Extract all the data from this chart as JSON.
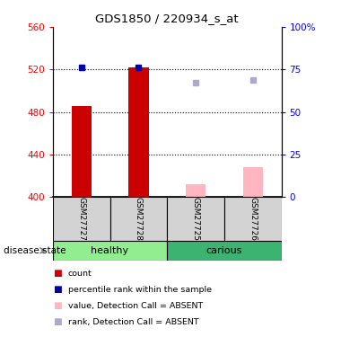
{
  "title": "GDS1850 / 220934_s_at",
  "samples": [
    "GSM27727",
    "GSM27728",
    "GSM27725",
    "GSM27726"
  ],
  "groups": [
    "healthy",
    "healthy",
    "carious",
    "carious"
  ],
  "ylim_left": [
    400,
    560
  ],
  "ylim_right": [
    0,
    100
  ],
  "yticks_left": [
    400,
    440,
    480,
    520,
    560
  ],
  "yticks_right": [
    0,
    25,
    50,
    75,
    100
  ],
  "ytick_labels_right": [
    "0",
    "25",
    "50",
    "75",
    "100%"
  ],
  "red_bars": [
    486,
    522,
    null,
    null
  ],
  "pink_bars": [
    null,
    null,
    412,
    428
  ],
  "blue_squares": [
    522,
    522,
    null,
    null
  ],
  "light_blue_squares": [
    null,
    null,
    508,
    510
  ],
  "bar_width": 0.35,
  "red_color": "#CC0000",
  "pink_color": "#FFB6C1",
  "blue_color": "#0000AA",
  "light_blue_color": "#AAAACC",
  "legend_items": [
    {
      "label": "count",
      "color": "#CC0000"
    },
    {
      "label": "percentile rank within the sample",
      "color": "#0000AA"
    },
    {
      "label": "value, Detection Call = ABSENT",
      "color": "#FFB6C1"
    },
    {
      "label": "rank, Detection Call = ABSENT",
      "color": "#AAAACC"
    }
  ],
  "panel_bg": "#D3D3D3",
  "healthy_color": "#90EE90",
  "carious_color": "#3CB371"
}
